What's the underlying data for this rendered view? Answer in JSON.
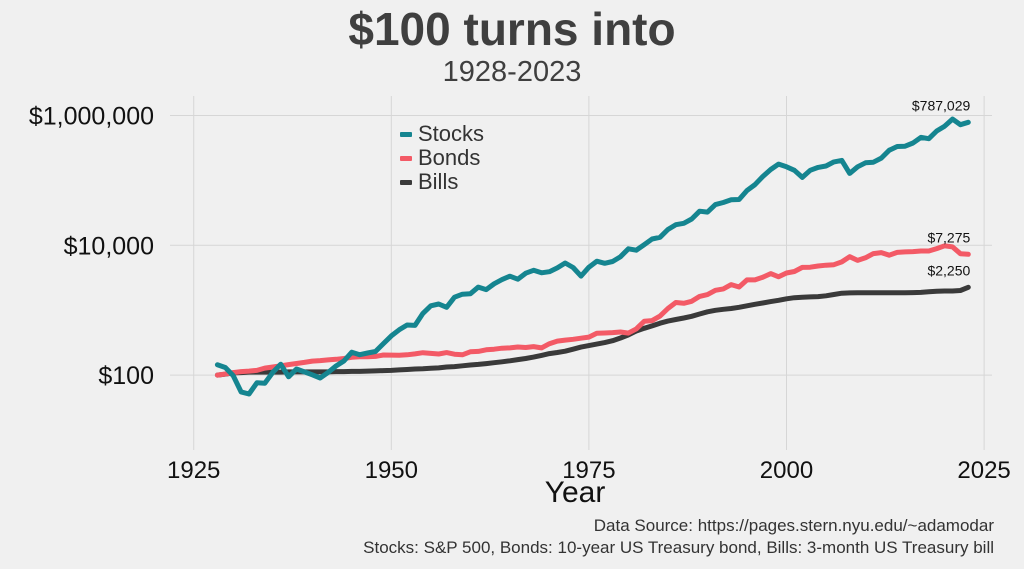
{
  "chart_data": {
    "type": "line",
    "title": "$100 turns into",
    "subtitle": "1928-2023",
    "xlabel": "Year",
    "ylabel": "",
    "y_scale": "log",
    "xlim": [
      1922,
      2026
    ],
    "ylim": [
      7,
      2000000
    ],
    "x_ticks": [
      1925,
      1950,
      1975,
      2000,
      2025
    ],
    "y_ticks": [
      {
        "value": 100,
        "label": "$100"
      },
      {
        "value": 10000,
        "label": "$10,000"
      },
      {
        "value": 1000000,
        "label": "$1,000,000"
      }
    ],
    "grid": true,
    "legend_position": "top-center",
    "x": [
      1928,
      1929,
      1930,
      1931,
      1932,
      1933,
      1934,
      1935,
      1936,
      1937,
      1938,
      1939,
      1940,
      1941,
      1942,
      1943,
      1944,
      1945,
      1946,
      1947,
      1948,
      1949,
      1950,
      1951,
      1952,
      1953,
      1954,
      1955,
      1956,
      1957,
      1958,
      1959,
      1960,
      1961,
      1962,
      1963,
      1964,
      1965,
      1966,
      1967,
      1968,
      1969,
      1970,
      1971,
      1972,
      1973,
      1974,
      1975,
      1976,
      1977,
      1978,
      1979,
      1980,
      1981,
      1982,
      1983,
      1984,
      1985,
      1986,
      1987,
      1988,
      1989,
      1990,
      1991,
      1992,
      1993,
      1994,
      1995,
      1996,
      1997,
      1998,
      1999,
      2000,
      2001,
      2002,
      2003,
      2004,
      2005,
      2006,
      2007,
      2008,
      2009,
      2010,
      2011,
      2012,
      2013,
      2014,
      2015,
      2016,
      2017,
      2018,
      2019,
      2020,
      2021,
      2022,
      2023
    ],
    "series": [
      {
        "name": "Stocks",
        "color": "#158590",
        "values": [
          144,
          131,
          98,
          55,
          51,
          76,
          75,
          110,
          147,
          94,
          124,
          112,
          101,
          90,
          110,
          138,
          165,
          225,
          206,
          219,
          231,
          305,
          402,
          498,
          591,
          582,
          891,
          1170,
          1244,
          1107,
          1587,
          1766,
          1791,
          2272,
          2073,
          2546,
          2964,
          3335,
          2998,
          3717,
          4125,
          3774,
          3925,
          4486,
          5339,
          4555,
          3349,
          4595,
          5695,
          5286,
          5633,
          6671,
          8834,
          8401,
          10203,
          12499,
          13279,
          17488,
          20751,
          21843,
          25450,
          33514,
          32476,
          42373,
          45599,
          50192,
          50851,
          69956,
          86016,
          114711,
          147489,
          178535,
          162280,
          143000,
          111400,
          143353,
          158951,
          166759,
          193097,
          203706,
          128330,
          162271,
          186712,
          190621,
          221115,
          292706,
          332754,
          337357,
          377657,
          460041,
          439912,
          578413,
          684900,
          881577,
          722000,
          787029
        ]
      },
      {
        "name": "Bonds",
        "color": "#f35a66",
        "values": [
          100,
          104,
          109,
          113,
          115,
          118,
          128,
          133,
          139,
          145,
          151,
          157,
          164,
          167,
          171,
          175,
          180,
          188,
          191,
          192,
          194,
          204,
          203,
          202,
          205,
          212,
          221,
          216,
          211,
          222,
          210,
          205,
          228,
          232,
          245,
          250,
          259,
          262,
          271,
          266,
          275,
          262,
          304,
          334,
          346,
          356,
          370,
          385,
          441,
          445,
          452,
          461,
          443,
          514,
          674,
          690,
          811,
          1063,
          1312,
          1275,
          1369,
          1628,
          1737,
          2023,
          2128,
          2480,
          2276,
          2931,
          2934,
          3228,
          3669,
          3271,
          3737,
          3945,
          4572,
          4590,
          4794,
          4930,
          5031,
          5554,
          6667,
          5858,
          6418,
          7442,
          7710,
          7030,
          7770,
          7902,
          7984,
          8174,
          8174,
          8902,
          9817,
          9452,
          7416,
          7275
        ]
      },
      {
        "name": "Bills",
        "color": "#3a3a3a",
        "values": [
          100,
          103,
          108,
          109,
          111,
          111,
          111,
          111,
          111,
          112,
          112,
          112,
          112,
          112,
          112,
          113,
          113,
          114,
          114,
          115,
          116,
          117,
          118,
          120,
          122,
          124,
          125,
          127,
          129,
          133,
          135,
          139,
          143,
          146,
          150,
          155,
          160,
          166,
          173,
          180,
          189,
          201,
          214,
          223,
          233,
          250,
          270,
          285,
          300,
          316,
          339,
          373,
          416,
          477,
          526,
          573,
          630,
          678,
          718,
          758,
          805,
          874,
          943,
          996,
          1031,
          1062,
          1107,
          1169,
          1230,
          1292,
          1355,
          1418,
          1499,
          1557,
          1583,
          1600,
          1621,
          1668,
          1744,
          1824,
          1849,
          1852,
          1854,
          1855,
          1856,
          1857,
          1858,
          1859,
          1865,
          1882,
          1919,
          1962,
          1973,
          1974,
          2011,
          2250
        ]
      }
    ],
    "annotations": [
      {
        "x": 2023,
        "y": 787029,
        "text": "$787,029"
      },
      {
        "x": 2023,
        "y": 7275,
        "text": "$7,275"
      },
      {
        "x": 2023,
        "y": 2250,
        "text": "$2,250"
      }
    ]
  },
  "footer": {
    "source_line": "Data Source: https://pages.stern.nyu.edu/~adamodar",
    "notes_line": "Stocks: S&P 500, Bonds: 10-year US Treasury bond, Bills: 3-month US Treasury bill"
  }
}
